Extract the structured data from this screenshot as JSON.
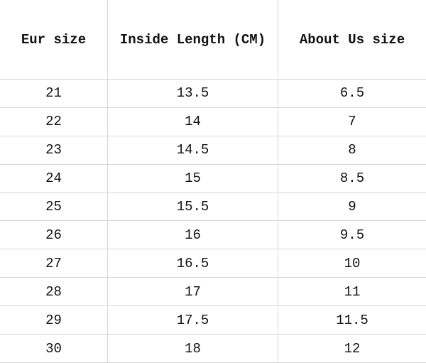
{
  "table": {
    "header": [
      "Eur size",
      "Inside Length (CM)",
      "About Us size"
    ],
    "rows": [
      [
        "21",
        "13.5",
        "6.5"
      ],
      [
        "22",
        "14",
        "7"
      ],
      [
        "23",
        "14.5",
        "8"
      ],
      [
        "24",
        "15",
        "8.5"
      ],
      [
        "25",
        "15.5",
        "9"
      ],
      [
        "26",
        "16",
        "9.5"
      ],
      [
        "27",
        "16.5",
        "10"
      ],
      [
        "28",
        "17",
        "11"
      ],
      [
        "29",
        "17.5",
        "11.5"
      ],
      [
        "30",
        "18",
        "12"
      ]
    ]
  }
}
